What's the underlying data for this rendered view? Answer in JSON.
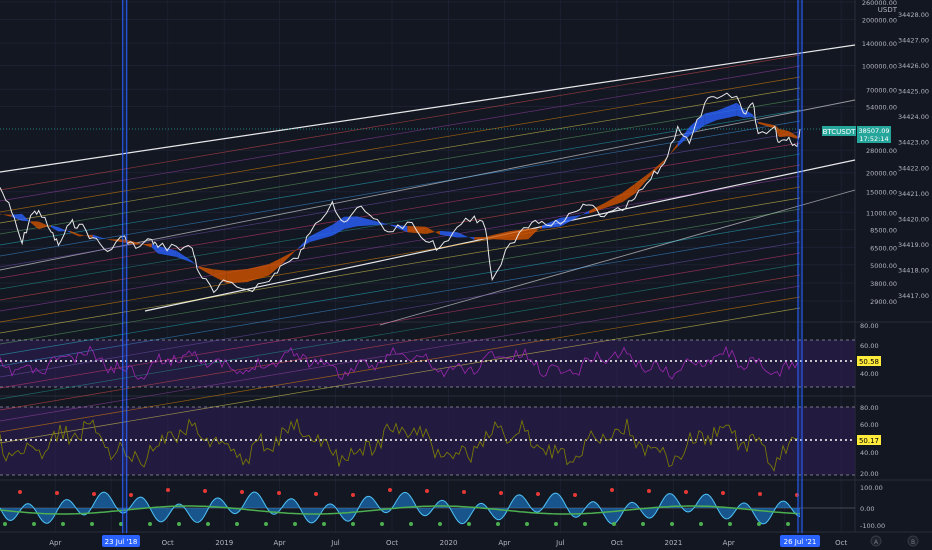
{
  "colors": {
    "background": "#131722",
    "price_line": "#e8e8e8",
    "ribbon_bull": "#2962ff",
    "ribbon_bear": "#d35400",
    "channel": "#ffffff",
    "rsi_line": "#9c27b0",
    "osc_line": "#808000",
    "band_fill": "#2a1e4a",
    "marker_line": "#2962ff",
    "price_badge": "#26a69a",
    "level_badge": "#ffeb3b",
    "macd_line": "#4fc3f7",
    "macd_fill": "#1e88e5",
    "signal_up": "#4caf50",
    "signal_down": "#e53935"
  },
  "axis": {
    "unit": "USDT",
    "price_labels": [
      "260000.00",
      "200000.00",
      "140000.00",
      "100000.00",
      "70000.00",
      "54000.00",
      "28000.00",
      "20000.00",
      "15000.00",
      "11000.00",
      "8500.00",
      "6500.00",
      "5000.00",
      "3800.00",
      "2900.00"
    ],
    "right_labels": [
      "34428.00",
      "34427.00",
      "34426.00",
      "34425.00",
      "34424.00",
      "34423.00",
      "34422.00",
      "34421.00",
      "34420.00",
      "34419.00",
      "34418.00",
      "34417.00"
    ],
    "rsi_labels": [
      "80.00",
      "60.00",
      "40.00"
    ],
    "osc_labels": [
      "80.00",
      "60.00",
      "40.00",
      "20.00"
    ],
    "macd_labels": [
      "100.00",
      "0.00",
      "-100.00"
    ],
    "time_labels": [
      "Apr",
      "Oct",
      "2019",
      "Apr",
      "Jul",
      "Oct",
      "2020",
      "Apr",
      "Jul",
      "Oct",
      "2021",
      "Apr",
      "Oct"
    ],
    "scale_buttons": [
      "A",
      "B"
    ]
  },
  "badges": {
    "symbol": "BTCUSDT",
    "price": "38507.09",
    "countdown": "17:52:14",
    "rsi_level": "50.58",
    "osc_level": "50.17",
    "marker_left": "23 Jul '18",
    "marker_right": "26 Jul '21"
  },
  "chart_data": {
    "type": "line",
    "symbol": "BTCUSDT",
    "scale": "log",
    "x_range": [
      "2018-01",
      "2021-10"
    ],
    "y_range": [
      2900,
      260000
    ],
    "markers": [
      "2018-07-23",
      "2021-07-26"
    ],
    "series": [
      {
        "name": "BTCUSDT",
        "points": [
          [
            "2018-01-01",
            16000
          ],
          [
            "2018-01-20",
            11000
          ],
          [
            "2018-02-06",
            6900
          ],
          [
            "2018-02-20",
            10500
          ],
          [
            "2018-03-05",
            11300
          ],
          [
            "2018-03-25",
            8200
          ],
          [
            "2018-04-06",
            6700
          ],
          [
            "2018-04-25",
            9300
          ],
          [
            "2018-05-10",
            9200
          ],
          [
            "2018-06-01",
            7500
          ],
          [
            "2018-06-25",
            6100
          ],
          [
            "2018-07-23",
            7700
          ],
          [
            "2018-08-10",
            6400
          ],
          [
            "2018-09-05",
            7300
          ],
          [
            "2018-09-15",
            6500
          ],
          [
            "2018-10-15",
            6600
          ],
          [
            "2018-11-10",
            6400
          ],
          [
            "2018-11-20",
            4500
          ],
          [
            "2018-12-15",
            3300
          ],
          [
            "2019-01-05",
            3900
          ],
          [
            "2019-02-07",
            3450
          ],
          [
            "2019-03-15",
            3900
          ],
          [
            "2019-04-02",
            4900
          ],
          [
            "2019-05-01",
            5500
          ],
          [
            "2019-05-20",
            8000
          ],
          [
            "2019-06-26",
            12900
          ],
          [
            "2019-07-15",
            9500
          ],
          [
            "2019-08-05",
            11800
          ],
          [
            "2019-09-01",
            10000
          ],
          [
            "2019-09-25",
            8200
          ],
          [
            "2019-10-26",
            9500
          ],
          [
            "2019-11-25",
            7100
          ],
          [
            "2019-12-18",
            6500
          ],
          [
            "2020-01-15",
            8800
          ],
          [
            "2020-02-12",
            10400
          ],
          [
            "2020-03-01",
            8600
          ],
          [
            "2020-03-12",
            4000
          ],
          [
            "2020-04-10",
            6900
          ],
          [
            "2020-05-10",
            8700
          ],
          [
            "2020-06-01",
            9600
          ],
          [
            "2020-07-01",
            9200
          ],
          [
            "2020-07-28",
            11200
          ],
          [
            "2020-08-17",
            12300
          ],
          [
            "2020-09-10",
            10300
          ],
          [
            "2020-10-10",
            11300
          ],
          [
            "2020-10-30",
            13500
          ],
          [
            "2020-11-25",
            18000
          ],
          [
            "2020-12-17",
            23000
          ],
          [
            "2021-01-08",
            40000
          ],
          [
            "2021-01-27",
            31000
          ],
          [
            "2021-02-21",
            57000
          ],
          [
            "2021-03-13",
            61000
          ],
          [
            "2021-04-14",
            63000
          ],
          [
            "2021-04-25",
            49000
          ],
          [
            "2021-05-10",
            57000
          ],
          [
            "2021-05-19",
            36000
          ],
          [
            "2021-06-15",
            40000
          ],
          [
            "2021-06-22",
            31500
          ],
          [
            "2021-07-08",
            34000
          ],
          [
            "2021-07-20",
            29800
          ],
          [
            "2021-07-26",
            38507
          ]
        ]
      }
    ],
    "indicators": [
      {
        "name": "rsi",
        "levels": [
          80,
          60,
          40
        ],
        "current": 50.58
      },
      {
        "name": "oscillator",
        "levels": [
          80,
          60,
          40,
          20
        ],
        "current": 50.17
      },
      {
        "name": "macd",
        "levels": [
          100,
          0,
          -100
        ]
      }
    ]
  }
}
